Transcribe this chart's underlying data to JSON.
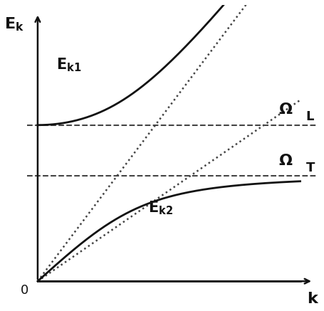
{
  "omega_L": 0.65,
  "omega_T": 0.44,
  "k_max": 1.0,
  "E_max": 1.15,
  "c_light": 1.45,
  "bg_color": "#ffffff",
  "line_color": "#111111",
  "dashed_color": "#444444",
  "dotted_color": "#444444",
  "lw_main": 2.0,
  "lw_dashed": 1.5,
  "lw_dotted": 1.8,
  "label_Ek1": "E$_{k1}$",
  "label_Ek2": "E$_{k2}$",
  "font_size_curve": 15,
  "font_size_omega": 16,
  "font_size_sub": 13,
  "font_size_axis": 16
}
